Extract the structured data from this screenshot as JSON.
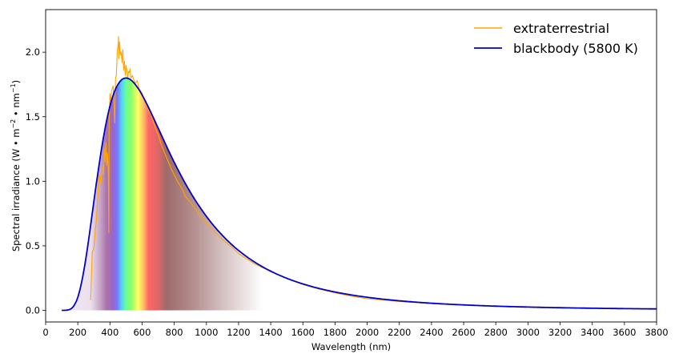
{
  "chart_data": {
    "type": "line",
    "title": "",
    "xlabel": "Wavelength (nm)",
    "ylabel": "Spectral irradiance (W • m⁻² • nm⁻¹)",
    "xlim": [
      0,
      3800
    ],
    "ylim": [
      -0.09,
      2.33
    ],
    "grid": false,
    "legend_position": "upper right",
    "x_ticks": [
      0,
      200,
      400,
      600,
      800,
      1000,
      1200,
      1400,
      1600,
      1800,
      2000,
      2200,
      2400,
      2600,
      2800,
      3000,
      3200,
      3400,
      3600,
      3800
    ],
    "y_ticks": [
      0.0,
      0.5,
      1.0,
      1.5,
      2.0
    ],
    "y_tick_labels": [
      "0.0",
      "0.5",
      "1.0",
      "1.5",
      "2.0"
    ],
    "spectrum_fill": {
      "description": "Color-gradient fill under blackbody curve showing visible spectrum colors",
      "x_range": [
        100,
        1350
      ],
      "stops": [
        {
          "nm": 100,
          "color": "#efe6ef"
        },
        {
          "nm": 280,
          "color": "#ece0ec"
        },
        {
          "nm": 340,
          "color": "#c7a3c7"
        },
        {
          "nm": 380,
          "color": "#a873a8"
        },
        {
          "nm": 420,
          "color": "#9966cc"
        },
        {
          "nm": 445,
          "color": "#7777ff"
        },
        {
          "nm": 470,
          "color": "#55ccff"
        },
        {
          "nm": 500,
          "color": "#66ff99"
        },
        {
          "nm": 530,
          "color": "#88ff66"
        },
        {
          "nm": 575,
          "color": "#ffff66"
        },
        {
          "nm": 610,
          "color": "#ffbb66"
        },
        {
          "nm": 640,
          "color": "#ff6666"
        },
        {
          "nm": 700,
          "color": "#dd6666"
        },
        {
          "nm": 750,
          "color": "#9e6a6a"
        },
        {
          "nm": 900,
          "color": "#b08a8a"
        },
        {
          "nm": 1100,
          "color": "#d4c0c0"
        },
        {
          "nm": 1350,
          "color": "#ffffff"
        }
      ]
    },
    "series": [
      {
        "name": "extraterrestrial",
        "color": "#ffa500",
        "x": [
          280,
          290,
          300,
          305,
          310,
          315,
          320,
          325,
          330,
          335,
          340,
          345,
          350,
          355,
          360,
          365,
          370,
          375,
          380,
          385,
          390,
          393,
          395,
          400,
          405,
          410,
          415,
          420,
          425,
          430,
          435,
          440,
          445,
          450,
          453,
          455,
          460,
          465,
          470,
          475,
          480,
          485,
          490,
          495,
          500,
          505,
          510,
          515,
          520,
          525,
          530,
          540,
          550,
          560,
          570,
          580,
          590,
          600,
          620,
          640,
          660,
          680,
          700,
          720,
          740,
          760,
          780,
          800,
          820,
          850,
          870,
          900,
          950,
          1000,
          1050,
          1100,
          1150,
          1200,
          1300,
          1400,
          1500,
          1600,
          1700,
          1800,
          1900,
          2000,
          2200,
          2400,
          2600,
          2800,
          3000,
          3200,
          3400,
          3600,
          3800
        ],
        "y": [
          0.08,
          0.45,
          0.48,
          0.55,
          0.64,
          0.68,
          0.8,
          0.9,
          1.05,
          1.0,
          1.05,
          0.98,
          1.08,
          1.12,
          1.05,
          1.25,
          1.15,
          1.3,
          1.12,
          1.22,
          1.05,
          0.6,
          1.45,
          1.68,
          1.62,
          1.7,
          1.72,
          1.74,
          1.6,
          1.45,
          1.8,
          1.82,
          2.0,
          2.05,
          2.12,
          1.95,
          2.08,
          1.98,
          2.0,
          1.92,
          2.02,
          1.86,
          1.93,
          1.82,
          1.9,
          1.86,
          1.79,
          1.85,
          1.84,
          1.87,
          1.8,
          1.82,
          1.78,
          1.76,
          1.78,
          1.72,
          1.7,
          1.68,
          1.61,
          1.55,
          1.5,
          1.42,
          1.36,
          1.28,
          1.22,
          1.16,
          1.1,
          1.05,
          1.0,
          0.94,
          0.88,
          0.84,
          0.75,
          0.68,
          0.61,
          0.55,
          0.5,
          0.44,
          0.36,
          0.3,
          0.25,
          0.2,
          0.165,
          0.135,
          0.11,
          0.09,
          0.068,
          0.052,
          0.041,
          0.033,
          0.027,
          0.022,
          0.018,
          0.015,
          0.013
        ]
      },
      {
        "name": "blackbody (5800 K)",
        "color": "#0000cc",
        "model": "Planck 5800 K scaled to peak 1.80 at ~500 nm",
        "x_range": [
          100,
          3800
        ],
        "peak": {
          "x": 500,
          "y": 1.8
        }
      }
    ]
  },
  "legend": {
    "items": [
      {
        "label": "extraterrestrial",
        "color": "#ffa500"
      },
      {
        "label": "blackbody (5800 K)",
        "color": "#0000cc"
      }
    ]
  },
  "axes": {
    "xlabel": "Wavelength (nm)",
    "ylabel_main": "Spectral irradiance (W • m",
    "ylabel_sup1": "−2",
    "ylabel_mid": " • nm",
    "ylabel_sup2": "−1",
    "ylabel_end": ")"
  }
}
